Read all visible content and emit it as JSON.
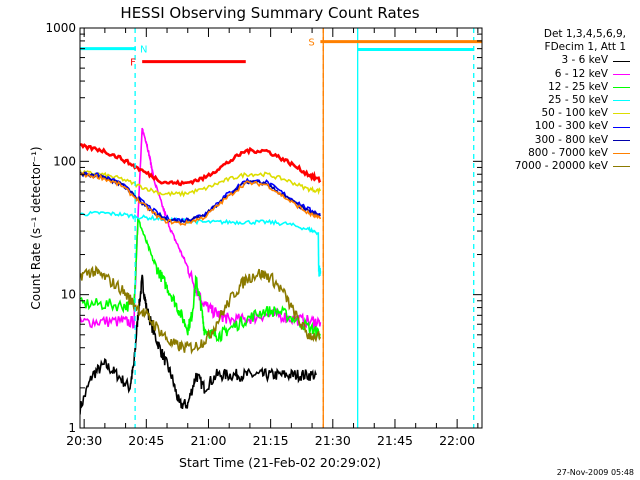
{
  "chart_data": {
    "type": "line",
    "title": "HESSI Observing Summary Count Rates",
    "ylabel": "Count Rate (s⁻¹ detector⁻¹)",
    "xlabel": "Start Time (21-Feb-02 20:29:02)",
    "y_scale": "log",
    "ylim": [
      1,
      1000
    ],
    "y_ticks": [
      1,
      10,
      100,
      1000
    ],
    "y_tick_labels": [
      "1",
      "10",
      "100",
      "1000"
    ],
    "xlim_minutes": [
      0,
      97
    ],
    "x_ticks": [
      1,
      16,
      31,
      46,
      61,
      76,
      91
    ],
    "x_tick_labels": [
      "20:30",
      "20:45",
      "21:00",
      "21:15",
      "21:30",
      "21:45",
      "22:00"
    ],
    "legend_header": [
      "Det 1,3,4,5,6,9,",
      "FDecim 1, Att 1"
    ],
    "legend_placement": "right",
    "series": [
      {
        "name": "3 - 6 keV",
        "color": "#000000",
        "x": [
          0,
          3,
          6,
          9,
          12,
          13,
          14,
          15,
          16,
          18,
          20,
          22,
          24,
          26,
          28,
          30,
          33,
          36,
          39,
          42,
          45,
          48,
          51,
          54,
          57
        ],
        "y": [
          1.4,
          2.5,
          3,
          2.5,
          2,
          3,
          7,
          13,
          8,
          5,
          3.5,
          2.5,
          1.5,
          1.5,
          2.5,
          2,
          2.5,
          2.5,
          2.5,
          2.5,
          2.5,
          2.5,
          2.5,
          2.5,
          2.5
        ]
      },
      {
        "name": "6 - 12 keV",
        "color": "#ff00ff",
        "x": [
          0,
          5,
          10,
          13,
          14,
          15,
          16,
          17,
          18,
          20,
          22,
          24,
          26,
          28,
          30,
          32,
          34,
          36,
          40,
          44,
          48,
          52,
          56,
          58
        ],
        "y": [
          6.2,
          6.3,
          6.3,
          6.2,
          40,
          175,
          140,
          100,
          70,
          45,
          30,
          22,
          16,
          11,
          8.5,
          7.5,
          7,
          6.5,
          6.5,
          7,
          7,
          6.5,
          6.3,
          6.2
        ]
      },
      {
        "name": "12 - 25 keV",
        "color": "#00ff00",
        "x": [
          0,
          5,
          10,
          13,
          14,
          16,
          18,
          20,
          22,
          24,
          26,
          27,
          28,
          29,
          30,
          32,
          34,
          36,
          40,
          44,
          48,
          52,
          56,
          58
        ],
        "y": [
          8.5,
          8.5,
          8.3,
          8.2,
          37,
          25,
          17,
          13,
          10,
          7.5,
          5.5,
          7,
          13,
          9,
          5.5,
          5,
          5,
          5.5,
          6.5,
          7.5,
          7.5,
          6.5,
          5.5,
          5
        ]
      },
      {
        "name": "25 - 50 keV",
        "color": "#00ffff",
        "x": [
          0,
          5,
          10,
          15,
          20,
          25,
          30,
          35,
          40,
          45,
          50,
          55,
          57.5,
          57.6,
          58
        ],
        "y": [
          40,
          41,
          40,
          38,
          37,
          36,
          35,
          35,
          35,
          35,
          34,
          31,
          29,
          15,
          15
        ]
      },
      {
        "name": "50 - 100 keV",
        "color": "#dddd00",
        "x": [
          0,
          5,
          10,
          15,
          20,
          25,
          30,
          35,
          40,
          45,
          50,
          55,
          58
        ],
        "y": [
          83,
          80,
          74,
          64,
          57,
          57,
          62,
          72,
          80,
          80,
          72,
          62,
          60
        ]
      },
      {
        "name": "100 - 300 keV",
        "color": "#0000ff",
        "x": [
          0,
          5,
          10,
          15,
          20,
          25,
          30,
          35,
          40,
          45,
          50,
          55,
          58
        ],
        "y": [
          82,
          78,
          68,
          50,
          38,
          36,
          40,
          55,
          72,
          70,
          55,
          44,
          40
        ]
      },
      {
        "name": "300 - 800 keV",
        "color": "#0000aa",
        "x": [
          0,
          5,
          10,
          15,
          20,
          25,
          30,
          35,
          40,
          45,
          50,
          55,
          58
        ],
        "y": [
          81,
          77,
          67,
          49,
          37,
          35,
          39,
          53,
          70,
          68,
          53,
          42,
          39
        ]
      },
      {
        "name": "800 - 7000 keV",
        "color": "#ff8000",
        "x": [
          0,
          5,
          10,
          15,
          20,
          25,
          30,
          35,
          40,
          45,
          50,
          55,
          58
        ],
        "y": [
          80,
          76,
          66,
          48,
          36,
          34,
          38,
          52,
          69,
          67,
          52,
          41,
          37
        ]
      },
      {
        "name": "7000 - 20000 keV",
        "color": "#8b7a00",
        "x": [
          0,
          3,
          6,
          10,
          13,
          16,
          19,
          22,
          25,
          28,
          31,
          34,
          37,
          40,
          43,
          46,
          49,
          52,
          55,
          58
        ],
        "y": [
          14,
          15,
          13.5,
          11,
          8.5,
          7,
          5.5,
          4.3,
          4,
          4.1,
          4.8,
          7,
          10,
          13,
          14.5,
          13.5,
          10.5,
          7,
          5,
          4.8
        ]
      },
      {
        "name": "",
        "color": "#ff0000",
        "x": [
          0,
          5,
          10,
          15,
          20,
          25,
          30,
          35,
          40,
          45,
          50,
          55,
          58
        ],
        "y": [
          130,
          122,
          105,
          85,
          70,
          68,
          75,
          95,
          120,
          120,
          100,
          80,
          72
        ]
      }
    ],
    "flags": [
      {
        "label": "",
        "color": "#00ffff",
        "x1": 0,
        "x2": 13.5,
        "y": 700
      },
      {
        "label": "N",
        "color": "#00ffff",
        "x1": 13.5,
        "x2": 13.5,
        "y": 700
      },
      {
        "label": "F",
        "color": "#ff0000",
        "x1": 15,
        "x2": 40,
        "y": 560
      },
      {
        "label": "S",
        "color": "#ff8000",
        "x1": 58,
        "x2": 97,
        "y": 790
      },
      {
        "label": "",
        "color": "#00ffff",
        "x1": 67,
        "x2": 95,
        "y": 690
      }
    ],
    "vlines": [
      {
        "x": 13.3,
        "color": "#00ffff",
        "dashed": true
      },
      {
        "x": 58.7,
        "color": "#ff8000",
        "dashed": false
      },
      {
        "x": 58.7,
        "color": "#ff8000",
        "dashed": true
      },
      {
        "x": 67,
        "color": "#00ffff",
        "dashed": false
      },
      {
        "x": 95,
        "color": "#00ffff",
        "dashed": true
      }
    ]
  },
  "footer": {
    "timestamp": "27-Nov-2009 05:48"
  }
}
